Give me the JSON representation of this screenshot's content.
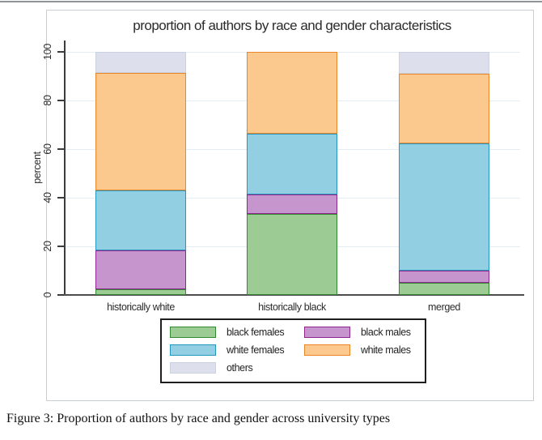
{
  "caption": {
    "text": "Figure 3: Proportion of authors by race and gender across university types"
  },
  "chart_data": {
    "type": "bar",
    "stacked": true,
    "orientation": "vertical",
    "title": "proportion of authors by race and gender characteristics",
    "xlabel": "",
    "ylabel": "percent",
    "categories": [
      "historically white",
      "historically black",
      "merged"
    ],
    "series": [
      {
        "name": "black females",
        "fill": "#9ccb93",
        "border": "#348a33",
        "values": [
          2.5,
          33.5,
          5
        ]
      },
      {
        "name": "black males",
        "fill": "#c795ce",
        "border": "#90278e",
        "values": [
          16,
          8,
          5
        ]
      },
      {
        "name": "white females",
        "fill": "#93cfe3",
        "border": "#2596be",
        "values": [
          24.5,
          25,
          52.5
        ]
      },
      {
        "name": "white males",
        "fill": "#fbc98e",
        "border": "#e9862c",
        "values": [
          48.5,
          33.5,
          28.5
        ]
      },
      {
        "name": "others",
        "fill": "#dde0ec",
        "border": "#ccd1df",
        "values": [
          8.5,
          0,
          9
        ]
      }
    ],
    "yticks": [
      0,
      20,
      40,
      60,
      80,
      100
    ],
    "ylim": [
      0,
      100
    ],
    "grid": true,
    "gridline_color": "#e3edf6",
    "legend_position": "bottom",
    "legend_columns": 2
  }
}
